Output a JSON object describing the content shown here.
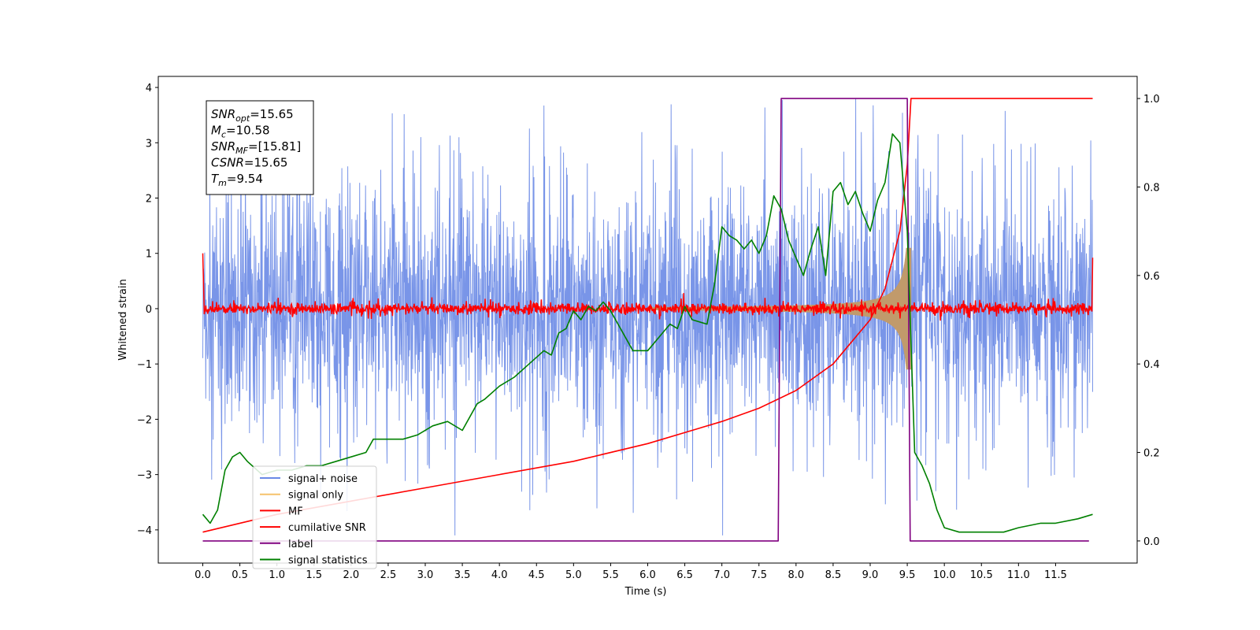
{
  "chart_data": {
    "type": "line",
    "xlabel": "Time (s)",
    "ylabel": "Whitened strain",
    "xlim": [
      -0.6,
      12.6
    ],
    "ylim": [
      -4.6,
      4.2
    ],
    "y2lim": [
      -0.05,
      1.05
    ],
    "x_ticks": [
      "0.0",
      "0.5",
      "1.0",
      "1.5",
      "2.0",
      "2.5",
      "3.0",
      "3.5",
      "4.0",
      "4.5",
      "5.0",
      "5.5",
      "6.0",
      "6.5",
      "7.0",
      "7.5",
      "8.0",
      "8.5",
      "9.0",
      "9.5",
      "10.0",
      "10.5",
      "11.0",
      "11.5"
    ],
    "y_ticks": [
      "4",
      "3",
      "2",
      "1",
      "0",
      "−1",
      "−2",
      "−3",
      "−4"
    ],
    "y2_ticks": [
      "1.0",
      "0.8",
      "0.6",
      "0.4",
      "0.2",
      "0.0"
    ],
    "grid": false,
    "legend_position": "lower-left",
    "info_box": [
      {
        "main": "SNR",
        "sub": "opt",
        "rest": "=15.65"
      },
      {
        "main": "M",
        "sub": "c",
        "rest": "=10.58"
      },
      {
        "main": "SNR",
        "sub": "MF",
        "rest": "=[15.81]"
      },
      {
        "main": "CSNR",
        "sub": "",
        "rest": "=15.65"
      },
      {
        "main": "T",
        "sub": "m",
        "rest": "=9.54"
      }
    ],
    "series": [
      {
        "name": "signal+ noise",
        "color": "#6a8ae6",
        "axis": "left",
        "description_values": {
          "x_range": [
            0.0,
            12.0
          ],
          "typical_amplitude": 1.5,
          "max_spike": 3.8,
          "min_spike": -4.15
        }
      },
      {
        "name": "signal only",
        "color": "#f5c26b",
        "axis": "left",
        "description_values": {
          "x_range": [
            0.0,
            12.0
          ],
          "chirp_end": 9.5,
          "max_amplitude": 1.1
        }
      },
      {
        "name": "MF",
        "color": "#ff0000",
        "axis": "left",
        "description_values": {
          "x_range": [
            0.0,
            12.0
          ],
          "noise_amplitude": 0.1,
          "edge_value": 1.0
        }
      },
      {
        "name": "cumilative SNR",
        "color": "#ff0000",
        "axis": "right",
        "x": [
          0.0,
          1.0,
          2.0,
          3.0,
          4.0,
          5.0,
          6.0,
          7.0,
          7.5,
          8.0,
          8.5,
          9.0,
          9.2,
          9.4,
          9.5,
          9.55,
          10.0,
          11.0,
          12.0
        ],
        "values": [
          0.02,
          0.06,
          0.09,
          0.12,
          0.15,
          0.18,
          0.22,
          0.27,
          0.3,
          0.34,
          0.4,
          0.5,
          0.57,
          0.7,
          0.85,
          1.0,
          1.0,
          1.0,
          1.0
        ]
      },
      {
        "name": "label",
        "color": "#800080",
        "axis": "right",
        "x": [
          0.0,
          7.76,
          7.8,
          9.5,
          9.54,
          11.95
        ],
        "values": [
          0.0,
          0.0,
          1.0,
          1.0,
          0.0,
          0.0
        ]
      },
      {
        "name": "signal statistics",
        "color": "#008000",
        "axis": "right",
        "x": [
          0.0,
          0.1,
          0.2,
          0.3,
          0.4,
          0.5,
          0.6,
          0.8,
          1.0,
          1.2,
          1.4,
          1.6,
          1.8,
          2.0,
          2.2,
          2.3,
          2.5,
          2.7,
          2.9,
          3.1,
          3.3,
          3.5,
          3.7,
          3.8,
          4.0,
          4.2,
          4.4,
          4.6,
          4.7,
          4.8,
          4.9,
          5.0,
          5.1,
          5.2,
          5.3,
          5.4,
          5.5,
          5.6,
          5.8,
          6.0,
          6.2,
          6.3,
          6.4,
          6.5,
          6.6,
          6.8,
          6.9,
          7.0,
          7.1,
          7.2,
          7.3,
          7.4,
          7.5,
          7.6,
          7.7,
          7.8,
          7.9,
          8.0,
          8.1,
          8.2,
          8.3,
          8.4,
          8.5,
          8.6,
          8.7,
          8.8,
          8.9,
          9.0,
          9.1,
          9.2,
          9.3,
          9.4,
          9.5,
          9.6,
          9.7,
          9.8,
          9.9,
          10.0,
          10.2,
          10.5,
          10.8,
          11.0,
          11.3,
          11.5,
          11.8,
          12.0
        ],
        "values": [
          0.06,
          0.04,
          0.07,
          0.16,
          0.19,
          0.2,
          0.18,
          0.15,
          0.16,
          0.16,
          0.17,
          0.17,
          0.18,
          0.19,
          0.2,
          0.23,
          0.23,
          0.23,
          0.24,
          0.26,
          0.27,
          0.25,
          0.31,
          0.32,
          0.35,
          0.37,
          0.4,
          0.43,
          0.42,
          0.47,
          0.48,
          0.52,
          0.5,
          0.53,
          0.52,
          0.54,
          0.52,
          0.49,
          0.43,
          0.43,
          0.47,
          0.49,
          0.48,
          0.53,
          0.5,
          0.49,
          0.58,
          0.71,
          0.69,
          0.68,
          0.66,
          0.68,
          0.65,
          0.69,
          0.78,
          0.75,
          0.68,
          0.64,
          0.6,
          0.66,
          0.71,
          0.6,
          0.79,
          0.81,
          0.76,
          0.79,
          0.74,
          0.7,
          0.77,
          0.81,
          0.92,
          0.9,
          0.7,
          0.2,
          0.17,
          0.13,
          0.07,
          0.03,
          0.02,
          0.02,
          0.02,
          0.03,
          0.04,
          0.04,
          0.05,
          0.06
        ]
      }
    ]
  }
}
